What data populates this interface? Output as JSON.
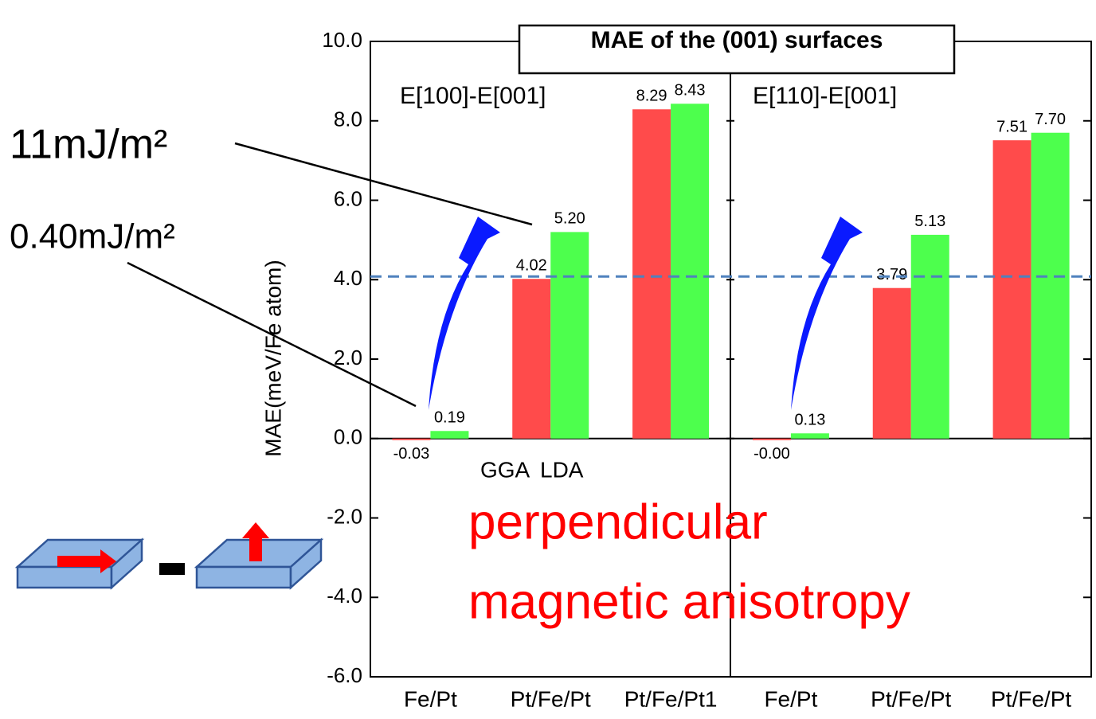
{
  "chart_data": [
    {
      "type": "bar",
      "title": "MAE of the (001) surfaces",
      "panel_label": "E[100]-E[001]",
      "y_label": "MAE(meV/Fe atom)",
      "categories": [
        "Fe/Pt",
        "Pt/Fe/Pt",
        "Pt/Fe/Pt1"
      ],
      "series": [
        {
          "name": "GGA",
          "color": "#ff4b4b",
          "values": [
            -0.03,
            4.02,
            8.29
          ]
        },
        {
          "name": "LDA",
          "color": "#4dff4d",
          "values": [
            0.19,
            5.2,
            8.43
          ],
          "value_labels": [
            "0.19",
            "5.20",
            "8.43"
          ]
        }
      ],
      "ylim": [
        -6,
        10
      ],
      "yticks": [
        {
          "value": -6,
          "label": "-6.0"
        },
        {
          "value": -4,
          "label": "-4.0"
        },
        {
          "value": -2,
          "label": "-2.0"
        },
        {
          "value": 0,
          "label": "0.0"
        },
        {
          "value": 2,
          "label": "2.0"
        },
        {
          "value": 4,
          "label": "4.0"
        },
        {
          "value": 6,
          "label": "6.0"
        },
        {
          "value": 8,
          "label": "8.0"
        },
        {
          "value": 10,
          "label": "10.0"
        }
      ],
      "reference_line": 4.08,
      "annotations": [
        "11mJ/m²",
        "0.40mJ/m²",
        "perpendicular",
        "magnetic anisotropy"
      ]
    },
    {
      "type": "bar",
      "panel_label": "E[110]-E[001]",
      "categories": [
        "Fe/Pt",
        "Pt/Fe/Pt",
        "Pt/Fe/Pt"
      ],
      "series": [
        {
          "name": "GGA",
          "color": "#ff4b4b",
          "values": [
            0,
            3.79,
            7.51
          ],
          "value_labels": [
            "-0.00",
            "3.79",
            "7.51"
          ]
        },
        {
          "name": "LDA",
          "color": "#4dff4d",
          "values": [
            0.13,
            5.13,
            7.7
          ],
          "value_labels": [
            "0.13",
            "5.13",
            "7.70"
          ]
        }
      ]
    }
  ]
}
